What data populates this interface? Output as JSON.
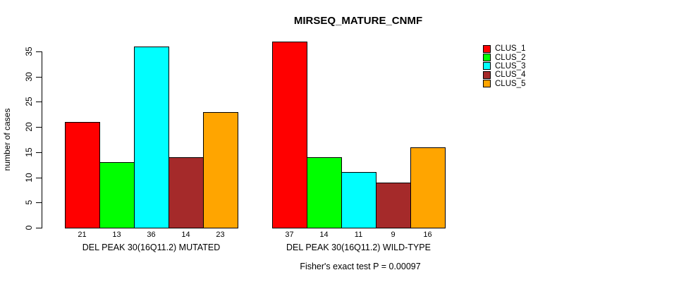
{
  "chart": {
    "title": "MIRSEQ_MATURE_CNMF",
    "ylabel": "number of cases",
    "caption": "Fisher's exact test P = 0.00097"
  },
  "chart_data": {
    "type": "bar",
    "title": "MIRSEQ_MATURE_CNMF",
    "xlabel": "",
    "ylabel": "number of cases",
    "ylim": [
      0,
      37
    ],
    "yticks": [
      0,
      5,
      10,
      15,
      20,
      25,
      30,
      35
    ],
    "grid": false,
    "legend_position": "right",
    "categories": [
      "DEL PEAK 30(16Q11.2) MUTATED",
      "DEL PEAK 30(16Q11.2) WILD-TYPE"
    ],
    "series": [
      {
        "name": "CLUS_1",
        "color": "#FF0000",
        "values": [
          21,
          37
        ]
      },
      {
        "name": "CLUS_2",
        "color": "#00FF00",
        "values": [
          13,
          14
        ]
      },
      {
        "name": "CLUS_3",
        "color": "#00FFFF",
        "values": [
          36,
          11
        ]
      },
      {
        "name": "CLUS_4",
        "color": "#A52A2A",
        "values": [
          14,
          9
        ]
      },
      {
        "name": "CLUS_5",
        "color": "#FFA500",
        "values": [
          23,
          16
        ]
      }
    ],
    "bar_value_labels": [
      [
        "21",
        "13",
        "36",
        "14",
        "23"
      ],
      [
        "37",
        "14",
        "11",
        "9",
        "16"
      ]
    ],
    "caption": "Fisher's exact test P = 0.00097"
  }
}
